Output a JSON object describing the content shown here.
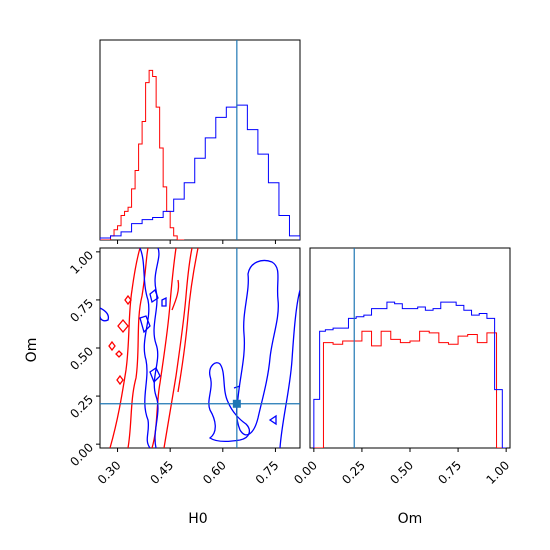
{
  "colors": {
    "series_a": "#ff0000",
    "series_b": "#0000ff",
    "truth": "#1f77b4",
    "axis": "#000000"
  },
  "chart_data": [
    {
      "type": "histogram",
      "panel": "H0 marginal (top-left)",
      "x_range": [
        0.25,
        0.82
      ],
      "truth_line": 0.64,
      "series": [
        {
          "color": "red",
          "bin_edges": [
            0.25,
            0.26,
            0.27,
            0.28,
            0.29,
            0.3,
            0.31,
            0.32,
            0.33,
            0.34,
            0.35,
            0.36,
            0.37,
            0.38,
            0.39,
            0.4,
            0.41,
            0.42,
            0.43,
            0.44,
            0.45,
            0.46,
            0.47,
            0.48,
            0.49
          ],
          "counts": [
            0,
            0,
            0,
            2,
            5,
            7,
            12,
            14,
            16,
            25,
            34,
            47,
            58,
            77,
            83,
            80,
            65,
            45,
            26,
            14,
            6,
            2,
            0,
            0
          ]
        },
        {
          "color": "blue",
          "bin_edges": [
            0.25,
            0.28,
            0.31,
            0.34,
            0.37,
            0.4,
            0.43,
            0.46,
            0.49,
            0.52,
            0.55,
            0.58,
            0.61,
            0.64,
            0.67,
            0.7,
            0.73,
            0.76,
            0.79,
            0.82
          ],
          "counts": [
            1,
            2,
            4,
            8,
            10,
            11,
            14,
            20,
            28,
            40,
            50,
            60,
            65,
            66,
            54,
            42,
            28,
            12,
            2
          ]
        }
      ]
    },
    {
      "type": "contour",
      "panel": "H0 vs Om joint (bottom-left)",
      "x_range": [
        0.25,
        0.82
      ],
      "y_range": [
        -0.02,
        1.02
      ],
      "truth_point": {
        "H0": 0.64,
        "Om": 0.21
      },
      "x_ticks": [
        "0.30",
        "0.45",
        "0.60",
        "0.75"
      ],
      "y_ticks": [
        "0.00",
        "0.25",
        "0.50",
        "0.75",
        "1.00"
      ],
      "xlabel": "H0",
      "ylabel": "Om",
      "series": [
        {
          "color": "red",
          "approx_center_H0": 0.4,
          "approx_H0_width": 0.12
        },
        {
          "color": "blue",
          "approx_center_H0": 0.66,
          "approx_H0_width": 0.2
        }
      ]
    },
    {
      "type": "histogram",
      "panel": "Om marginal (bottom-right)",
      "x_range": [
        -0.02,
        1.02
      ],
      "truth_line": 0.21,
      "x_ticks": [
        "0.00",
        "0.25",
        "0.50",
        "0.75",
        "1.00"
      ],
      "xlabel": "Om",
      "series": [
        {
          "color": "red",
          "bin_edges": [
            0.0,
            0.05,
            0.1,
            0.15,
            0.2,
            0.25,
            0.3,
            0.35,
            0.4,
            0.45,
            0.5,
            0.55,
            0.6,
            0.65,
            0.7,
            0.75,
            0.8,
            0.85,
            0.9,
            0.95,
            1.0
          ],
          "counts": [
            0,
            65,
            64,
            66,
            66,
            72,
            63,
            72,
            67,
            65,
            66,
            72,
            71,
            65,
            64,
            69,
            70,
            65,
            71,
            0
          ]
        },
        {
          "color": "blue",
          "bin_edges": [
            0.0,
            0.03,
            0.06,
            0.1,
            0.14,
            0.18,
            0.22,
            0.26,
            0.3,
            0.34,
            0.38,
            0.42,
            0.46,
            0.5,
            0.54,
            0.58,
            0.62,
            0.66,
            0.7,
            0.74,
            0.78,
            0.82,
            0.86,
            0.9,
            0.94,
            0.98,
            1.0
          ],
          "counts": [
            30,
            72,
            73,
            74,
            74,
            80,
            81,
            82,
            86,
            86,
            90,
            89,
            86,
            86,
            87,
            85,
            86,
            90,
            90,
            88,
            85,
            82,
            83,
            80,
            36,
            0
          ]
        }
      ]
    }
  ]
}
